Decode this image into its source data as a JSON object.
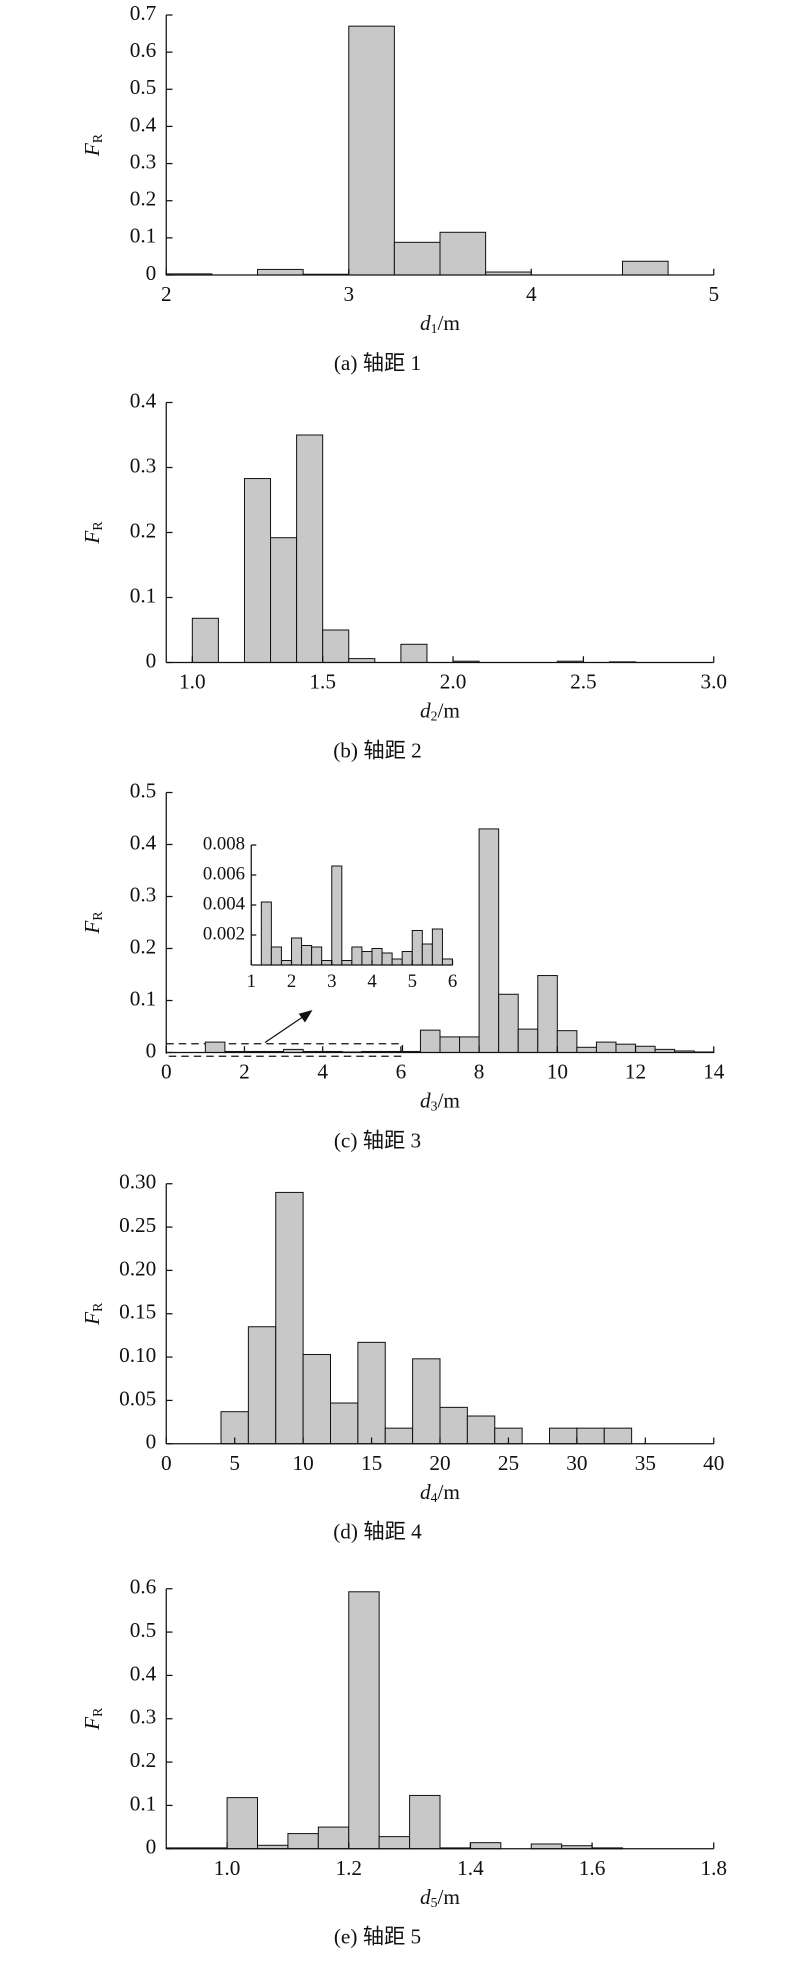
{
  "chart_data": [
    {
      "type": "histogram",
      "color": "#c8c8c8",
      "caption": "(a) 轴距 1",
      "xlabel": [
        "d",
        "1",
        "/m"
      ],
      "ylabel": [
        "F",
        "R"
      ],
      "bins": [
        2,
        2.25,
        2.5,
        2.75,
        3,
        3.25,
        3.5,
        3.75,
        4,
        4.25,
        4.5,
        4.75,
        5
      ],
      "values": [
        0.003,
        0,
        0.015,
        0.002,
        0.67,
        0.088,
        0.115,
        0.008,
        0,
        0,
        0.037,
        0
      ],
      "xlim": [
        2,
        5
      ],
      "xticks": [
        2,
        3,
        4,
        5
      ],
      "ylim": [
        0,
        0.7
      ],
      "yticks": [
        0,
        0.1,
        0.2,
        0.3,
        0.4,
        0.5,
        0.6,
        0.7
      ]
    },
    {
      "type": "histogram",
      "color": "#c8c8c8",
      "caption": "(b) 轴距 2",
      "xlabel": [
        "d",
        "2",
        "/m"
      ],
      "ylabel": [
        "F",
        "R"
      ],
      "bins": [
        1.0,
        1.1,
        1.2,
        1.3,
        1.4,
        1.5,
        1.6,
        1.7,
        1.8,
        1.9,
        2.0,
        2.1,
        2.2,
        2.3,
        2.4,
        2.5,
        2.6,
        2.7,
        2.8,
        2.9,
        3.0
      ],
      "values": [
        0.068,
        0,
        0.283,
        0.192,
        0.35,
        0.05,
        0.006,
        0,
        0.028,
        0,
        0.002,
        0,
        0,
        0,
        0.002,
        0,
        0.001,
        0,
        0,
        0
      ],
      "xlim": [
        0.9,
        3.0
      ],
      "xticks": [
        {
          "value": 1,
          "label": "1.0"
        },
        1.5,
        {
          "value": 2,
          "label": "2.0"
        },
        2.5,
        {
          "value": 3,
          "label": "3.0"
        }
      ],
      "ylim": [
        0,
        0.4
      ],
      "yticks": [
        0,
        0.1,
        0.2,
        0.3,
        0.4
      ]
    },
    {
      "type": "histogram",
      "color": "#c8c8c8",
      "caption": "(c) 轴距 3",
      "xlabel": [
        "d",
        "3",
        "/m"
      ],
      "ylabel": [
        "F",
        "R"
      ],
      "bins": [
        0,
        0.5,
        1,
        1.5,
        2,
        2.5,
        3,
        3.5,
        4,
        4.5,
        5,
        5.5,
        6,
        6.5,
        7,
        7.5,
        8,
        8.5,
        9,
        9.5,
        10,
        10.5,
        11,
        11.5,
        12,
        12.5,
        13,
        13.5,
        14
      ],
      "values": [
        0,
        0,
        0.02,
        0.002,
        0.002,
        0.002,
        0.006,
        0.002,
        0.002,
        0.001,
        0.002,
        0.002,
        0.002,
        0.043,
        0.03,
        0.03,
        0.43,
        0.112,
        0.045,
        0.148,
        0.042,
        0.01,
        0.02,
        0.016,
        0.012,
        0.006,
        0.003,
        0.001
      ],
      "xlim": [
        0,
        14
      ],
      "xticks": [
        0,
        2,
        4,
        6,
        8,
        10,
        12,
        14
      ],
      "ylim": [
        0,
        0.5
      ],
      "yticks": [
        0,
        0.1,
        0.2,
        0.3,
        0.4,
        0.5
      ],
      "inset": {
        "bins": [
          1,
          1.25,
          1.5,
          1.75,
          2,
          2.25,
          2.5,
          2.75,
          3,
          3.25,
          3.5,
          3.75,
          4,
          4.25,
          4.5,
          4.75,
          5,
          5.25,
          5.5,
          5.75,
          6
        ],
        "values": [
          0,
          0.0042,
          0.0012,
          0.0003,
          0.0018,
          0.0013,
          0.0012,
          0.0003,
          0.0066,
          0.0003,
          0.0012,
          0.0009,
          0.0011,
          0.0008,
          0.0004,
          0.0009,
          0.0023,
          0.0014,
          0.0024,
          0.0004
        ],
        "xlim": [
          1,
          6
        ],
        "xticks": [
          1,
          2,
          3,
          4,
          5,
          6
        ],
        "ylim": [
          0,
          0.008
        ],
        "yticks": [
          0.002,
          0.004,
          0.006,
          0.008
        ]
      }
    },
    {
      "type": "histogram",
      "color": "#c8c8c8",
      "caption": "(d) 轴距 4",
      "xlabel": [
        "d",
        "4",
        "/m"
      ],
      "ylabel": [
        "F",
        "R"
      ],
      "bins": [
        4,
        6,
        8,
        10,
        12,
        14,
        16,
        18,
        20,
        22,
        24,
        26,
        28,
        30,
        32,
        34
      ],
      "values": [
        0.037,
        0.135,
        0.29,
        0.103,
        0.047,
        0.117,
        0.018,
        0.098,
        0.042,
        0.032,
        0.018,
        0,
        0.018,
        0.018,
        0.018
      ],
      "xlim": [
        0,
        40
      ],
      "xticks": [
        0,
        5,
        10,
        15,
        20,
        25,
        30,
        35,
        40
      ],
      "ylim": [
        0,
        0.3
      ],
      "yticks": [
        0,
        0.05,
        {
          "value": 0.1,
          "label": "0.10"
        },
        0.15,
        {
          "value": 0.2,
          "label": "0.20"
        },
        0.25,
        {
          "value": 0.3,
          "label": "0.30"
        }
      ]
    },
    {
      "type": "histogram",
      "color": "#c8c8c8",
      "caption": "(e) 轴距 5",
      "xlabel": [
        "d",
        "5",
        "/m"
      ],
      "ylabel": [
        "F",
        "R"
      ],
      "bins": [
        0.9,
        0.95,
        1.0,
        1.05,
        1.1,
        1.15,
        1.2,
        1.25,
        1.3,
        1.35,
        1.4,
        1.45,
        1.5,
        1.55,
        1.6,
        1.65,
        1.7,
        1.75,
        1.8
      ],
      "values": [
        0.002,
        0.002,
        0.118,
        0.008,
        0.035,
        0.05,
        0.593,
        0.028,
        0.123,
        0.002,
        0.014,
        0,
        0.011,
        0.007,
        0.002,
        0,
        0,
        0
      ],
      "xlim": [
        0.9,
        1.8
      ],
      "xticks": [
        {
          "value": 1,
          "label": "1.0"
        },
        1.2,
        1.4,
        1.6,
        1.8
      ],
      "ylim": [
        0,
        0.6
      ],
      "yticks": [
        0,
        0.1,
        0.2,
        0.3,
        0.4,
        0.5,
        0.6
      ]
    }
  ]
}
